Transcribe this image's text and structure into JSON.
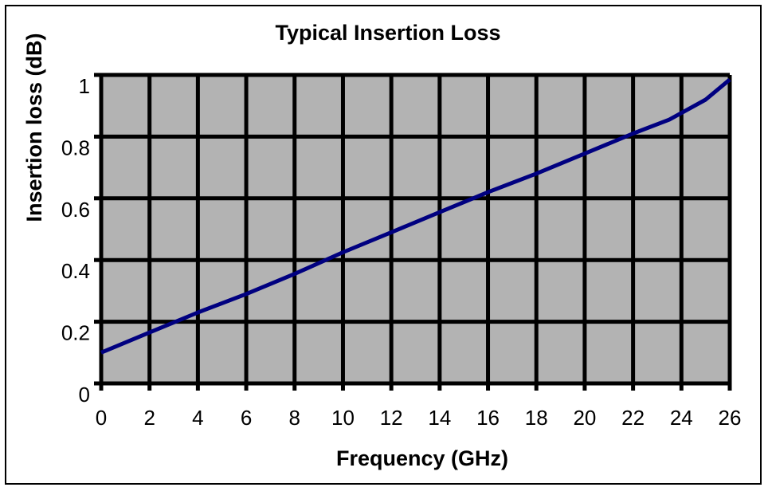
{
  "chart_data": {
    "type": "line",
    "title": "Typical Insertion Loss",
    "xlabel": "Frequency (GHz)",
    "ylabel": "Insertion loss (dB)",
    "xlim": [
      0,
      26
    ],
    "ylim": [
      0,
      1
    ],
    "x_ticks": [
      "0",
      "2",
      "4",
      "6",
      "8",
      "10",
      "12",
      "14",
      "16",
      "18",
      "20",
      "22",
      "24",
      "26"
    ],
    "y_ticks": [
      "0",
      "0.2",
      "0.4",
      "0.6",
      "0.8",
      "1"
    ],
    "grid": true,
    "legend": "none",
    "colors": {
      "plot_background": "#b3b3b3",
      "grid": "#000000",
      "line": "#000080"
    },
    "series": [
      {
        "x": [
          0,
          2,
          4,
          6,
          8,
          10,
          12,
          14,
          16,
          18,
          20,
          22,
          23.5,
          25,
          26
        ],
        "y": [
          0.1,
          0.165,
          0.23,
          0.29,
          0.355,
          0.425,
          0.49,
          0.555,
          0.62,
          0.68,
          0.745,
          0.81,
          0.855,
          0.92,
          0.985
        ]
      }
    ]
  }
}
